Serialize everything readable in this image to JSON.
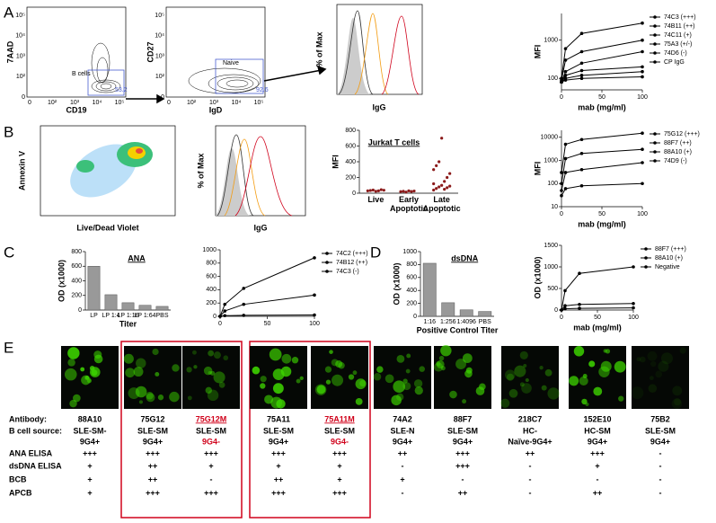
{
  "panels": {
    "a": "A",
    "b": "B",
    "c": "C",
    "d": "D",
    "e": "E"
  },
  "flow": {
    "ticks": [
      "0",
      "10²",
      "10³",
      "10⁴",
      "10⁵"
    ],
    "a1": {
      "y_label": "7AAD",
      "x_label": "CD19",
      "gate": "B cells",
      "pct": "53.2"
    },
    "a2": {
      "y_label": "CD27",
      "x_label": "IgD",
      "gate": "Naive",
      "pct": "92.6"
    },
    "b1": {
      "y_label": "Annexin V",
      "x_label": "Live/Dead Violet"
    }
  },
  "histograms": [
    {
      "y_label": "% of Max",
      "x_label": "IgG"
    },
    {
      "y_label": "% of Max",
      "x_label": "IgG"
    }
  ],
  "chart_data": [
    {
      "type": "line",
      "y_label": "MFI",
      "x_label": "mab (mg/ml)",
      "log_scale": true,
      "x": [
        0,
        5,
        25,
        100
      ],
      "xlim": [
        0,
        100
      ],
      "xticks": [
        0,
        50,
        100
      ],
      "ylim": [
        50,
        5000
      ],
      "yticks": [
        100,
        1000
      ],
      "series": [
        {
          "name": "74C3 (+++)",
          "color": "#000000",
          "values": [
            100,
            600,
            1500,
            2800
          ]
        },
        {
          "name": "74B11 (++)",
          "color": "#000000",
          "values": [
            90,
            300,
            500,
            1000
          ]
        },
        {
          "name": "74C11 (+)",
          "color": "#000000",
          "values": [
            80,
            150,
            250,
            500
          ]
        },
        {
          "name": "75A3 (+/-)",
          "color": "#000000",
          "values": [
            80,
            120,
            160,
            200
          ]
        },
        {
          "name": "74D6 (-)",
          "color": "#000000",
          "values": [
            80,
            100,
            120,
            150
          ]
        },
        {
          "name": "CP IgG",
          "color": "#000000",
          "values": [
            80,
            90,
            100,
            110
          ]
        }
      ]
    },
    {
      "type": "line",
      "y_label": "MFI",
      "x_label": "mab (mg/ml)",
      "log_scale": true,
      "x": [
        0,
        5,
        25,
        100
      ],
      "xlim": [
        0,
        100
      ],
      "xticks": [
        0,
        50,
        100
      ],
      "ylim": [
        10,
        20000
      ],
      "yticks": [
        10,
        100,
        1000,
        10000
      ],
      "series": [
        {
          "name": "75G12 (+++)",
          "color": "#000000",
          "values": [
            300,
            5000,
            8000,
            15000
          ]
        },
        {
          "name": "88F7 (++)",
          "color": "#000000",
          "values": [
            100,
            1200,
            2000,
            3000
          ]
        },
        {
          "name": "88A10 (+)",
          "color": "#000000",
          "values": [
            50,
            300,
            400,
            800
          ]
        },
        {
          "name": "74D9 (-)",
          "color": "#000000",
          "values": [
            30,
            60,
            80,
            100
          ]
        }
      ]
    },
    {
      "type": "strip",
      "title": "Jurkat T cells",
      "y_label": "MFI",
      "color": "#8b1a1a",
      "categories": [
        "Live",
        "Early\nApoptotic",
        "Late\nApoptotic"
      ],
      "ylim": [
        0,
        800
      ],
      "yticks": [
        0,
        200,
        400,
        600,
        800
      ],
      "values": [
        [
          30,
          35,
          40,
          25,
          30,
          45,
          38
        ],
        [
          20,
          25,
          15,
          30,
          22,
          28
        ],
        [
          40,
          60,
          80,
          100,
          150,
          200,
          250,
          300,
          350,
          400,
          700,
          50,
          70,
          90,
          120
        ]
      ]
    },
    {
      "type": "bar",
      "title": "ANA",
      "y_label": "OD (x1000)",
      "x_label": "Titer",
      "color": "#999999",
      "categories": [
        "LP",
        "LP 1:4",
        "LP 1:16",
        "LP 1:64",
        "PBS"
      ],
      "values": [
        600,
        210,
        100,
        65,
        50
      ],
      "ylim": [
        0,
        800
      ],
      "yticks": [
        0,
        200,
        400,
        600,
        800
      ]
    },
    {
      "type": "line",
      "log_scale": false,
      "x": [
        0,
        5,
        25,
        100
      ],
      "xlim": [
        0,
        100
      ],
      "xticks": [
        0,
        50,
        100
      ],
      "ylim": [
        0,
        1000
      ],
      "yticks": [
        0,
        200,
        400,
        600,
        800,
        1000
      ],
      "series": [
        {
          "name": "74C2 (+++)",
          "color": "#000000",
          "values": [
            0,
            180,
            420,
            880
          ]
        },
        {
          "name": "74B12 (++)",
          "color": "#000000",
          "values": [
            0,
            80,
            180,
            320
          ]
        },
        {
          "name": "74C3 (-)",
          "color": "#000000",
          "values": [
            0,
            10,
            15,
            20
          ]
        }
      ]
    },
    {
      "type": "bar",
      "title": "dsDNA",
      "y_label": "OD (x1000)",
      "x_label": "Positive Control Titer",
      "color": "#999999",
      "categories": [
        "1:16",
        "1:256",
        "1:4096",
        "PBS"
      ],
      "values": [
        820,
        210,
        100,
        75
      ],
      "ylim": [
        0,
        1000
      ],
      "yticks": [
        0,
        200,
        400,
        600,
        800,
        1000
      ]
    },
    {
      "type": "line",
      "y_label": "OD (x1000)",
      "x_label": "mab (mg/ml)",
      "log_scale": false,
      "x": [
        0,
        5,
        25,
        100
      ],
      "xlim": [
        0,
        100
      ],
      "xticks": [
        0,
        50,
        100
      ],
      "ylim": [
        0,
        1500
      ],
      "yticks": [
        0,
        500,
        1000,
        1500
      ],
      "series": [
        {
          "name": "88F7 (+++)",
          "color": "#000000",
          "values": [
            0,
            450,
            850,
            1000
          ]
        },
        {
          "name": "88A10 (+)",
          "color": "#000000",
          "values": [
            0,
            100,
            130,
            150
          ]
        },
        {
          "name": "Negative",
          "color": "#000000",
          "values": [
            0,
            30,
            40,
            50
          ]
        }
      ]
    }
  ],
  "table": {
    "row_labels": [
      "Antibody:",
      "B cell source:",
      "ANA ELISA",
      "dsDNA ELISA",
      "BCB",
      "APCB"
    ],
    "columns": [
      {
        "antibody": "88A10",
        "source": [
          "SLE-SM-",
          "9G4+"
        ],
        "cells": [
          "+++",
          "+",
          "+",
          "+"
        ]
      },
      {
        "antibody": "75G12",
        "source": [
          "SLE-SM",
          "9G4+"
        ],
        "cells": [
          "+++",
          "++",
          "++",
          "+++"
        ]
      },
      {
        "antibody": "75G12M",
        "source": [
          "SLE-SM",
          "9G4-"
        ],
        "cells": [
          "+++",
          "+",
          "-",
          "+++"
        ],
        "color": "#d0021b"
      },
      {
        "antibody": "75A11",
        "source": [
          "SLE-SM",
          "9G4+"
        ],
        "cells": [
          "+++",
          "+",
          "++",
          "+++"
        ]
      },
      {
        "antibody": "75A11M",
        "source": [
          "SLE-SM",
          "9G4-"
        ],
        "cells": [
          "+++",
          "+",
          "+",
          "+++"
        ],
        "color": "#d0021b"
      },
      {
        "antibody": "74A2",
        "source": [
          "SLE-N",
          "9G4+"
        ],
        "cells": [
          "++",
          "-",
          "+",
          "-"
        ]
      },
      {
        "antibody": "88F7",
        "source": [
          "SLE-SM",
          "9G4+"
        ],
        "cells": [
          "+++",
          "+++",
          "-",
          "++"
        ]
      },
      {
        "antibody": "218C7",
        "source": [
          "HC-",
          "Naïve-9G4+"
        ],
        "cells": [
          "++",
          "-",
          "-",
          "-"
        ]
      },
      {
        "antibody": "152E10",
        "source": [
          "HC-SM",
          "9G4+"
        ],
        "cells": [
          "+++",
          "+",
          "-",
          "++"
        ]
      },
      {
        "antibody": "75B2",
        "source": [
          "SLE-SM",
          "9G4+"
        ],
        "cells": [
          "-",
          "-",
          "-",
          "-"
        ]
      }
    ]
  }
}
